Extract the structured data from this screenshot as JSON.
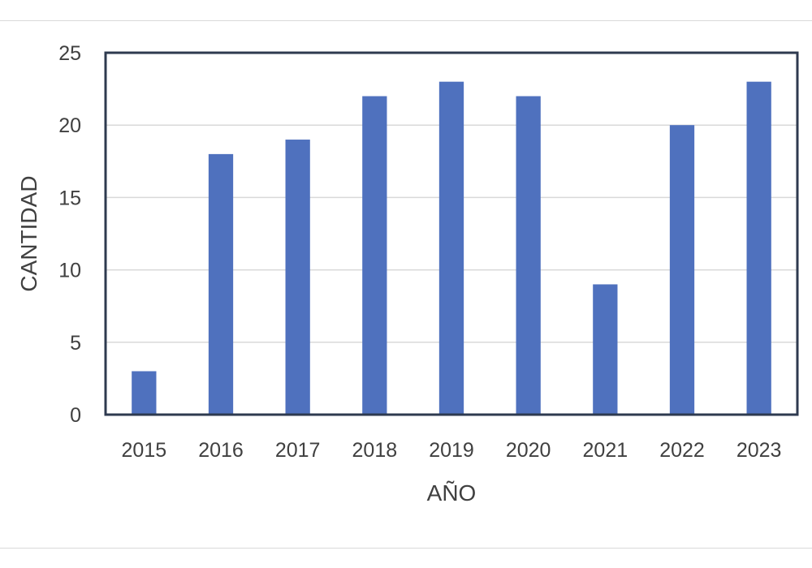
{
  "chart_data": {
    "type": "bar",
    "categories": [
      "2015",
      "2016",
      "2017",
      "2018",
      "2019",
      "2020",
      "2021",
      "2022",
      "2023"
    ],
    "values": [
      3,
      18,
      19,
      22,
      23,
      22,
      9,
      20,
      23
    ],
    "title": "",
    "xlabel": "AÑO",
    "ylabel": "CANTIDAD",
    "ylim": [
      0,
      25
    ],
    "yticks": [
      0,
      5,
      10,
      15,
      20,
      25
    ],
    "ytick_labels": [
      "0",
      "5",
      "10",
      "15",
      "20",
      "25"
    ],
    "grid": true,
    "legend": "none",
    "colors": {
      "bar": "#4f71be",
      "grid": "#d9d9d9",
      "plot_border": "#2e3a4f",
      "text": "#404040"
    }
  }
}
